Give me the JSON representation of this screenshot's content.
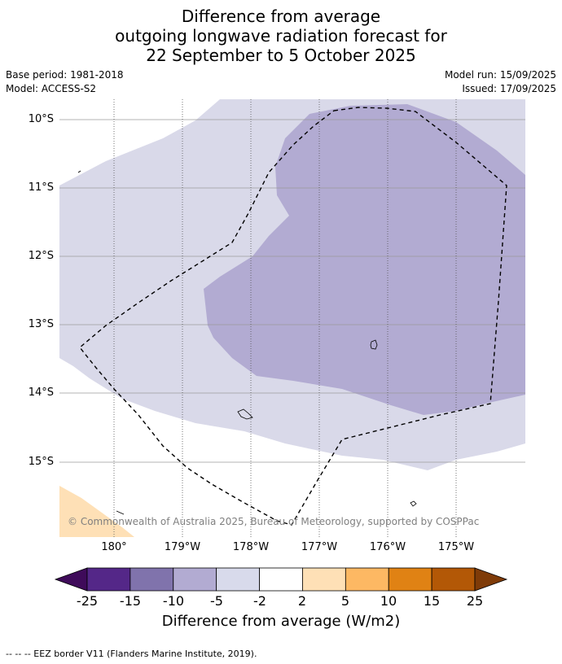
{
  "title": {
    "line1": "Difference from average",
    "line2": "outgoing longwave radiation forecast for",
    "line3": "22 September to 5 October 2025"
  },
  "meta": {
    "base_period": "Base period: 1981-2018",
    "model": "Model: ACCESS-S2",
    "model_run": "Model run: 15/09/2025",
    "issued": "Issued: 17/09/2025"
  },
  "map": {
    "lat_labels": [
      "10°S",
      "11°S",
      "12°S",
      "13°S",
      "14°S",
      "15°S"
    ],
    "lon_labels": [
      "180°",
      "179°W",
      "178°W",
      "177°W",
      "176°W",
      "175°W"
    ],
    "fill_colors": {
      "light_purple": "#d9d9e9",
      "mid_purple": "#b2abd2",
      "land_orange": "#fee0b6"
    },
    "copyright": "© Commonwealth of Australia 2025, Bureau of Meteorology, supported by COSPPac"
  },
  "colorbar": {
    "ticks": [
      "-25",
      "-15",
      "-10",
      "-5",
      "-2",
      "2",
      "5",
      "10",
      "15",
      "25"
    ],
    "colors": [
      "#3f0b5a",
      "#542788",
      "#8073ac",
      "#b2abd2",
      "#d8daeb",
      "#ffffff",
      "#fee0b6",
      "#fdb863",
      "#e08214",
      "#b35806",
      "#7f3b08"
    ],
    "label": "Difference from average (W/m2)"
  },
  "footnote": "--  --  -- EEZ border V11 (Flanders Marine Institute, 2019)."
}
